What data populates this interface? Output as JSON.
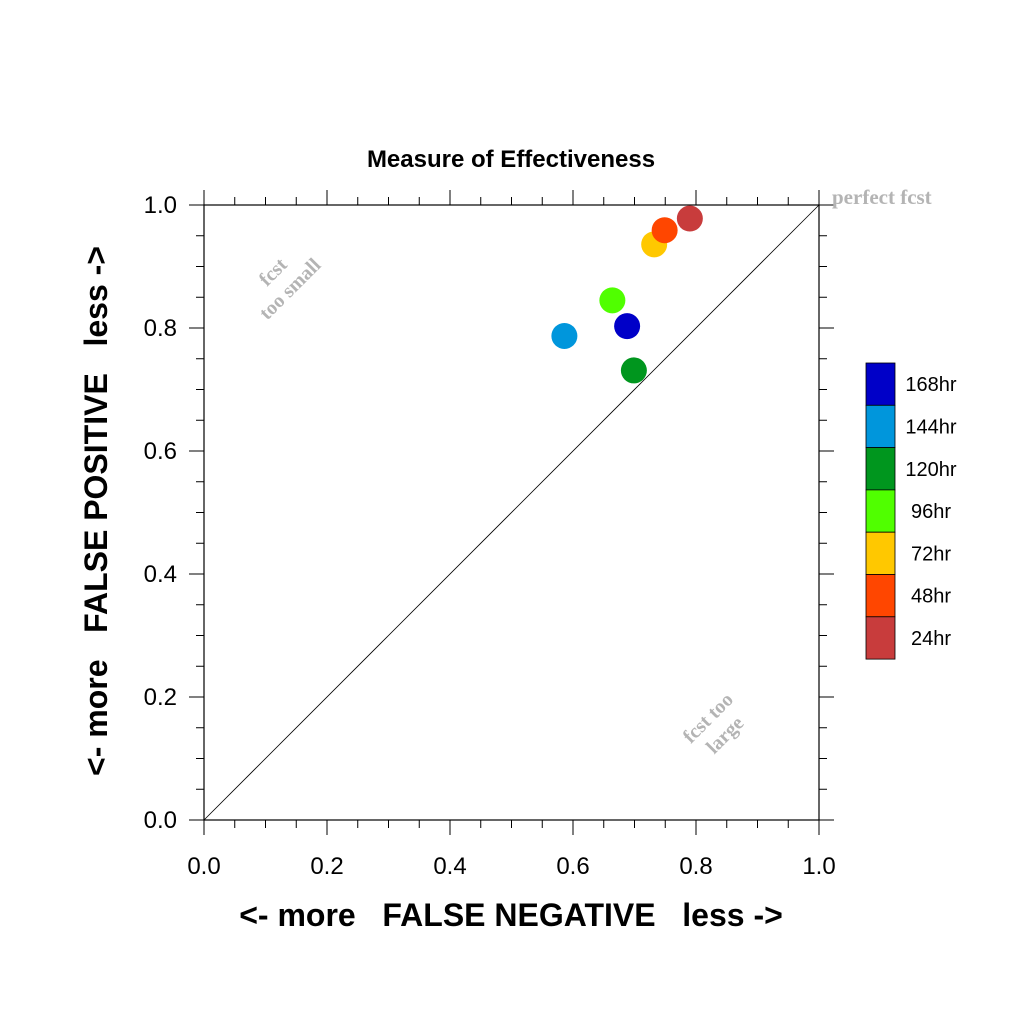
{
  "chart_data": {
    "type": "scatter",
    "title": "Measure of Effectiveness",
    "xlabel": "<- more   FALSE NEGATIVE   less ->",
    "ylabel": "<- more   FALSE POSITIVE   less ->",
    "xlim": [
      0.0,
      1.0
    ],
    "ylim": [
      0.0,
      1.0
    ],
    "xticks": [
      "0.0",
      "0.2",
      "0.4",
      "0.6",
      "0.8",
      "1.0"
    ],
    "yticks": [
      "0.0",
      "0.2",
      "0.4",
      "0.6",
      "0.8",
      "1.0"
    ],
    "grid": false,
    "legend_position": "right",
    "reference_line": {
      "x": [
        0.0,
        1.0
      ],
      "y": [
        0.0,
        1.0
      ]
    },
    "annotations": {
      "perfect": "perfect fcst",
      "small_line1": "fcst",
      "small_line2": "too small",
      "large_line1": "fcst too",
      "large_line2": "large"
    },
    "series": [
      {
        "name": "168hr",
        "color": "#0000c8",
        "x": 0.688,
        "y": 0.803
      },
      {
        "name": "144hr",
        "color": "#0096dc",
        "x": 0.586,
        "y": 0.787
      },
      {
        "name": "120hr",
        "color": "#00961e",
        "x": 0.699,
        "y": 0.731
      },
      {
        "name": "96hr",
        "color": "#50ff00",
        "x": 0.664,
        "y": 0.845
      },
      {
        "name": "72hr",
        "color": "#ffc800",
        "x": 0.732,
        "y": 0.936
      },
      {
        "name": "48hr",
        "color": "#ff4600",
        "x": 0.749,
        "y": 0.959
      },
      {
        "name": "24hr",
        "color": "#c83c3c",
        "x": 0.79,
        "y": 0.978
      }
    ]
  }
}
